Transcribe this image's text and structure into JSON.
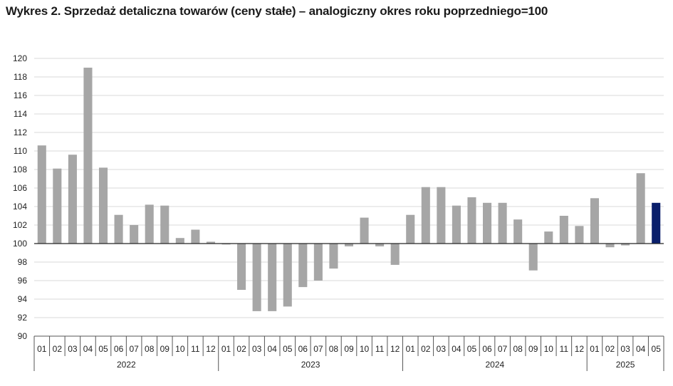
{
  "title": "Wykres 2. Sprzedaż detaliczna towarów (ceny stałe) – analogiczny okres roku poprzedniego=100",
  "colors": {
    "bar": "#a6a6a6",
    "highlight": "#0a1f6b",
    "grid": "#d9d9d9",
    "axis": "#555555"
  },
  "chart_data": {
    "type": "bar",
    "title": "Wykres 2. Sprzedaż detaliczna towarów (ceny stałe) – analogiczny okres roku poprzedniego=100",
    "xlabel": "",
    "ylabel": "",
    "baseline": 100,
    "ylim": [
      90,
      120
    ],
    "yticks": [
      90,
      92,
      94,
      96,
      98,
      100,
      102,
      104,
      106,
      108,
      110,
      112,
      114,
      116,
      118,
      120
    ],
    "grid": true,
    "legend": "none",
    "highlight_last": true,
    "years": [
      {
        "label": "2022",
        "months": [
          "01",
          "02",
          "03",
          "04",
          "05",
          "06",
          "07",
          "08",
          "09",
          "10",
          "11",
          "12"
        ],
        "values": [
          110.6,
          108.1,
          109.6,
          119.0,
          108.2,
          103.1,
          102.0,
          104.2,
          104.1,
          100.6,
          101.5,
          100.2
        ]
      },
      {
        "label": "2023",
        "months": [
          "01",
          "02",
          "03",
          "04",
          "05",
          "06",
          "07",
          "08",
          "09",
          "10",
          "11",
          "12"
        ],
        "values": [
          99.9,
          95.0,
          92.7,
          92.7,
          93.2,
          95.3,
          96.0,
          97.3,
          99.7,
          102.8,
          99.7,
          97.7
        ]
      },
      {
        "label": "2024",
        "months": [
          "01",
          "02",
          "03",
          "04",
          "05",
          "06",
          "07",
          "08",
          "09",
          "10",
          "11",
          "12"
        ],
        "values": [
          103.1,
          106.1,
          106.1,
          104.1,
          105.0,
          104.4,
          104.4,
          102.6,
          97.1,
          101.3,
          103.0,
          101.9
        ]
      },
      {
        "label": "2025",
        "months": [
          "01",
          "02",
          "03",
          "04",
          "05"
        ],
        "values": [
          104.9,
          99.6,
          99.8,
          107.6,
          104.4
        ]
      }
    ]
  }
}
